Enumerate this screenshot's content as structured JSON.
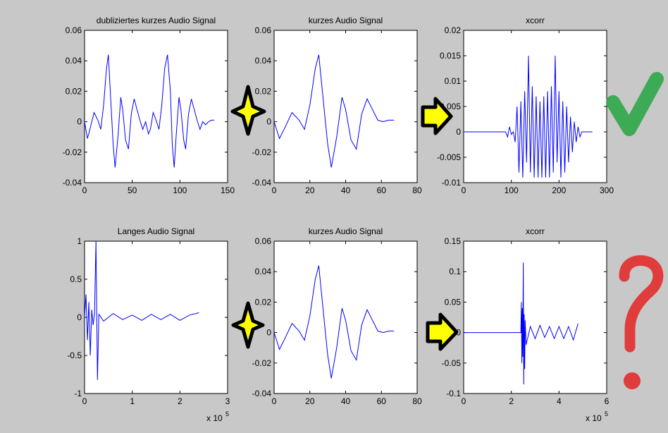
{
  "annotations": {
    "check_color": "#3daa55",
    "question_color": "#e03c3c",
    "arrow_color": "#ffff00",
    "star_color": "#ffff00"
  },
  "chart_data": [
    {
      "type": "line",
      "title": "dubliziertes kurzes Audio Signal",
      "xlim": [
        0,
        150
      ],
      "ylim": [
        -0.04,
        0.06
      ],
      "x_ticks": [
        "0",
        "50",
        "100",
        "150"
      ],
      "y_ticks": [
        "-0.04",
        "-0.02",
        "0",
        "0.02",
        "0.04",
        "0.06"
      ],
      "series": [
        {
          "color": "#0000ff",
          "x": [
            0,
            3,
            6,
            10,
            14,
            17,
            20,
            23,
            25,
            27,
            30,
            32,
            35,
            38,
            40,
            43,
            46,
            49,
            52,
            55,
            58,
            61,
            64,
            67,
            69,
            72,
            75,
            78,
            81,
            84,
            87,
            90,
            92,
            94,
            96,
            99,
            101,
            104,
            106,
            109,
            112,
            115,
            118,
            121,
            124,
            127,
            130,
            133,
            136
          ],
          "y": [
            0,
            -0.011,
            -0.004,
            0.006,
            0.001,
            -0.005,
            0.011,
            0.035,
            0.044,
            0.02,
            -0.015,
            -0.03,
            -0.01,
            0.016,
            0.008,
            -0.012,
            -0.018,
            0.005,
            0.015,
            0.008,
            0.001,
            -0.005,
            0,
            -0.008,
            -0.005,
            0.006,
            0.001,
            -0.005,
            0.011,
            0.035,
            0.044,
            0.02,
            -0.015,
            -0.03,
            -0.01,
            0.016,
            0.008,
            -0.012,
            -0.018,
            0.005,
            0.015,
            0.008,
            0.001,
            -0.005,
            0,
            -0.002,
            0,
            0.001,
            0.001
          ]
        }
      ]
    },
    {
      "type": "line",
      "title": "kurzes Audio Signal",
      "xlim": [
        0,
        80
      ],
      "ylim": [
        -0.04,
        0.06
      ],
      "x_ticks": [
        "0",
        "20",
        "40",
        "60",
        "80"
      ],
      "y_ticks": [
        "-0.04",
        "-0.02",
        "0",
        "0.02",
        "0.04",
        "0.06"
      ],
      "series": [
        {
          "color": "#0000ff",
          "x": [
            0,
            3,
            6,
            10,
            14,
            17,
            20,
            23,
            25,
            27,
            30,
            32,
            35,
            38,
            40,
            43,
            46,
            49,
            52,
            55,
            58,
            61,
            64,
            67
          ],
          "y": [
            0,
            -0.011,
            -0.004,
            0.006,
            0.001,
            -0.005,
            0.011,
            0.035,
            0.044,
            0.02,
            -0.015,
            -0.03,
            -0.01,
            0.016,
            0.008,
            -0.012,
            -0.018,
            0.005,
            0.015,
            0.008,
            0.001,
            0,
            0.001,
            0.001
          ]
        }
      ]
    },
    {
      "type": "line",
      "title": "xcorr",
      "xlim": [
        0,
        300
      ],
      "ylim": [
        -0.01,
        0.02
      ],
      "x_ticks": [
        "0",
        "100",
        "200",
        "300"
      ],
      "y_ticks": [
        "-0.01",
        "-0.005",
        "0",
        "0.005",
        "0.01",
        "0.015",
        "0.02"
      ],
      "series": [
        {
          "color": "#0000ff",
          "x": [
            0,
            80,
            88,
            92,
            96,
            100,
            104,
            108,
            112,
            116,
            120,
            124,
            128,
            132,
            136,
            140,
            144,
            148,
            152,
            156,
            160,
            164,
            168,
            172,
            176,
            180,
            184,
            188,
            192,
            196,
            200,
            204,
            208,
            212,
            216,
            220,
            224,
            228,
            232,
            236,
            240,
            244,
            248,
            252,
            256,
            270
          ],
          "y": [
            0,
            0,
            0,
            -0.001,
            0.001,
            -0.0005,
            0,
            -0.002,
            0.005,
            -0.008,
            0.006,
            -0.009,
            0.008,
            -0.006,
            0.015,
            -0.008,
            0.009,
            -0.009,
            0.007,
            -0.009,
            0.006,
            -0.009,
            0.007,
            -0.009,
            0.008,
            -0.009,
            0.009,
            -0.008,
            0.015,
            -0.006,
            0.008,
            -0.009,
            0.006,
            -0.008,
            0.005,
            -0.006,
            0.003,
            -0.004,
            0.002,
            -0.002,
            0.001,
            -0.001,
            0,
            0,
            0,
            0
          ]
        }
      ]
    },
    {
      "type": "line",
      "title": "Langes Audio Signal",
      "xlim": [
        0,
        300000
      ],
      "ylim": [
        -1,
        1
      ],
      "x_ticks": [
        "0",
        "1",
        "2",
        "3"
      ],
      "y_ticks": [
        "-1",
        "-0.5",
        "0",
        "0.5",
        "1"
      ],
      "x_multiplier": "x 10",
      "x_multiplier_exp": "5",
      "series": [
        {
          "color": "#0000ff",
          "x": [
            0,
            3000,
            6000,
            9000,
            12000,
            15000,
            18000,
            21000,
            24000,
            27000,
            30000,
            40000,
            60000,
            80000,
            100000,
            120000,
            140000,
            160000,
            180000,
            200000,
            220000,
            240000
          ],
          "y": [
            0,
            0.3,
            -0.3,
            0.2,
            -0.5,
            0.1,
            -0.1,
            0.05,
            1.0,
            -0.82,
            0.04,
            -0.05,
            0.05,
            -0.03,
            0.03,
            -0.04,
            0.04,
            -0.03,
            0.04,
            -0.04,
            0.03,
            0.06
          ]
        }
      ]
    },
    {
      "type": "line",
      "title": "kurzes Audio Signal",
      "xlim": [
        0,
        80
      ],
      "ylim": [
        -0.04,
        0.06
      ],
      "x_ticks": [
        "0",
        "20",
        "40",
        "60",
        "80"
      ],
      "y_ticks": [
        "-0.04",
        "-0.02",
        "0",
        "0.02",
        "0.04",
        "0.06"
      ],
      "series": [
        {
          "color": "#0000ff",
          "x": [
            0,
            3,
            6,
            10,
            14,
            17,
            20,
            23,
            25,
            27,
            30,
            32,
            35,
            38,
            40,
            43,
            46,
            49,
            52,
            55,
            58,
            61,
            64,
            67
          ],
          "y": [
            0,
            -0.011,
            -0.004,
            0.006,
            0.001,
            -0.005,
            0.011,
            0.035,
            0.044,
            0.02,
            -0.015,
            -0.03,
            -0.01,
            0.016,
            0.008,
            -0.012,
            -0.018,
            0.005,
            0.015,
            0.008,
            0.001,
            0,
            0.001,
            0.001
          ]
        }
      ]
    },
    {
      "type": "line",
      "title": "xcorr",
      "xlim": [
        0,
        600000
      ],
      "ylim": [
        -0.1,
        0.15
      ],
      "x_ticks": [
        "0",
        "2",
        "4",
        "6"
      ],
      "y_ticks": [
        "-0.1",
        "-0.05",
        "0",
        "0.05",
        "0.1",
        "0.15"
      ],
      "x_multiplier": "x 10",
      "x_multiplier_exp": "5",
      "series": [
        {
          "color": "#0000ff",
          "x": [
            0,
            100000,
            200000,
            240000,
            242000,
            244000,
            246000,
            248000,
            250000,
            252000,
            254000,
            256000,
            258000,
            262000,
            280000,
            300000,
            320000,
            340000,
            360000,
            380000,
            400000,
            420000,
            440000,
            460000,
            480000
          ],
          "y": [
            0,
            0,
            0,
            0,
            0.05,
            -0.05,
            0.04,
            -0.04,
            0.115,
            -0.085,
            0.03,
            -0.06,
            0.02,
            -0.02,
            0.01,
            -0.01,
            0.012,
            -0.008,
            0.01,
            -0.01,
            0.01,
            -0.01,
            0.01,
            -0.012,
            0.015
          ]
        }
      ]
    }
  ]
}
